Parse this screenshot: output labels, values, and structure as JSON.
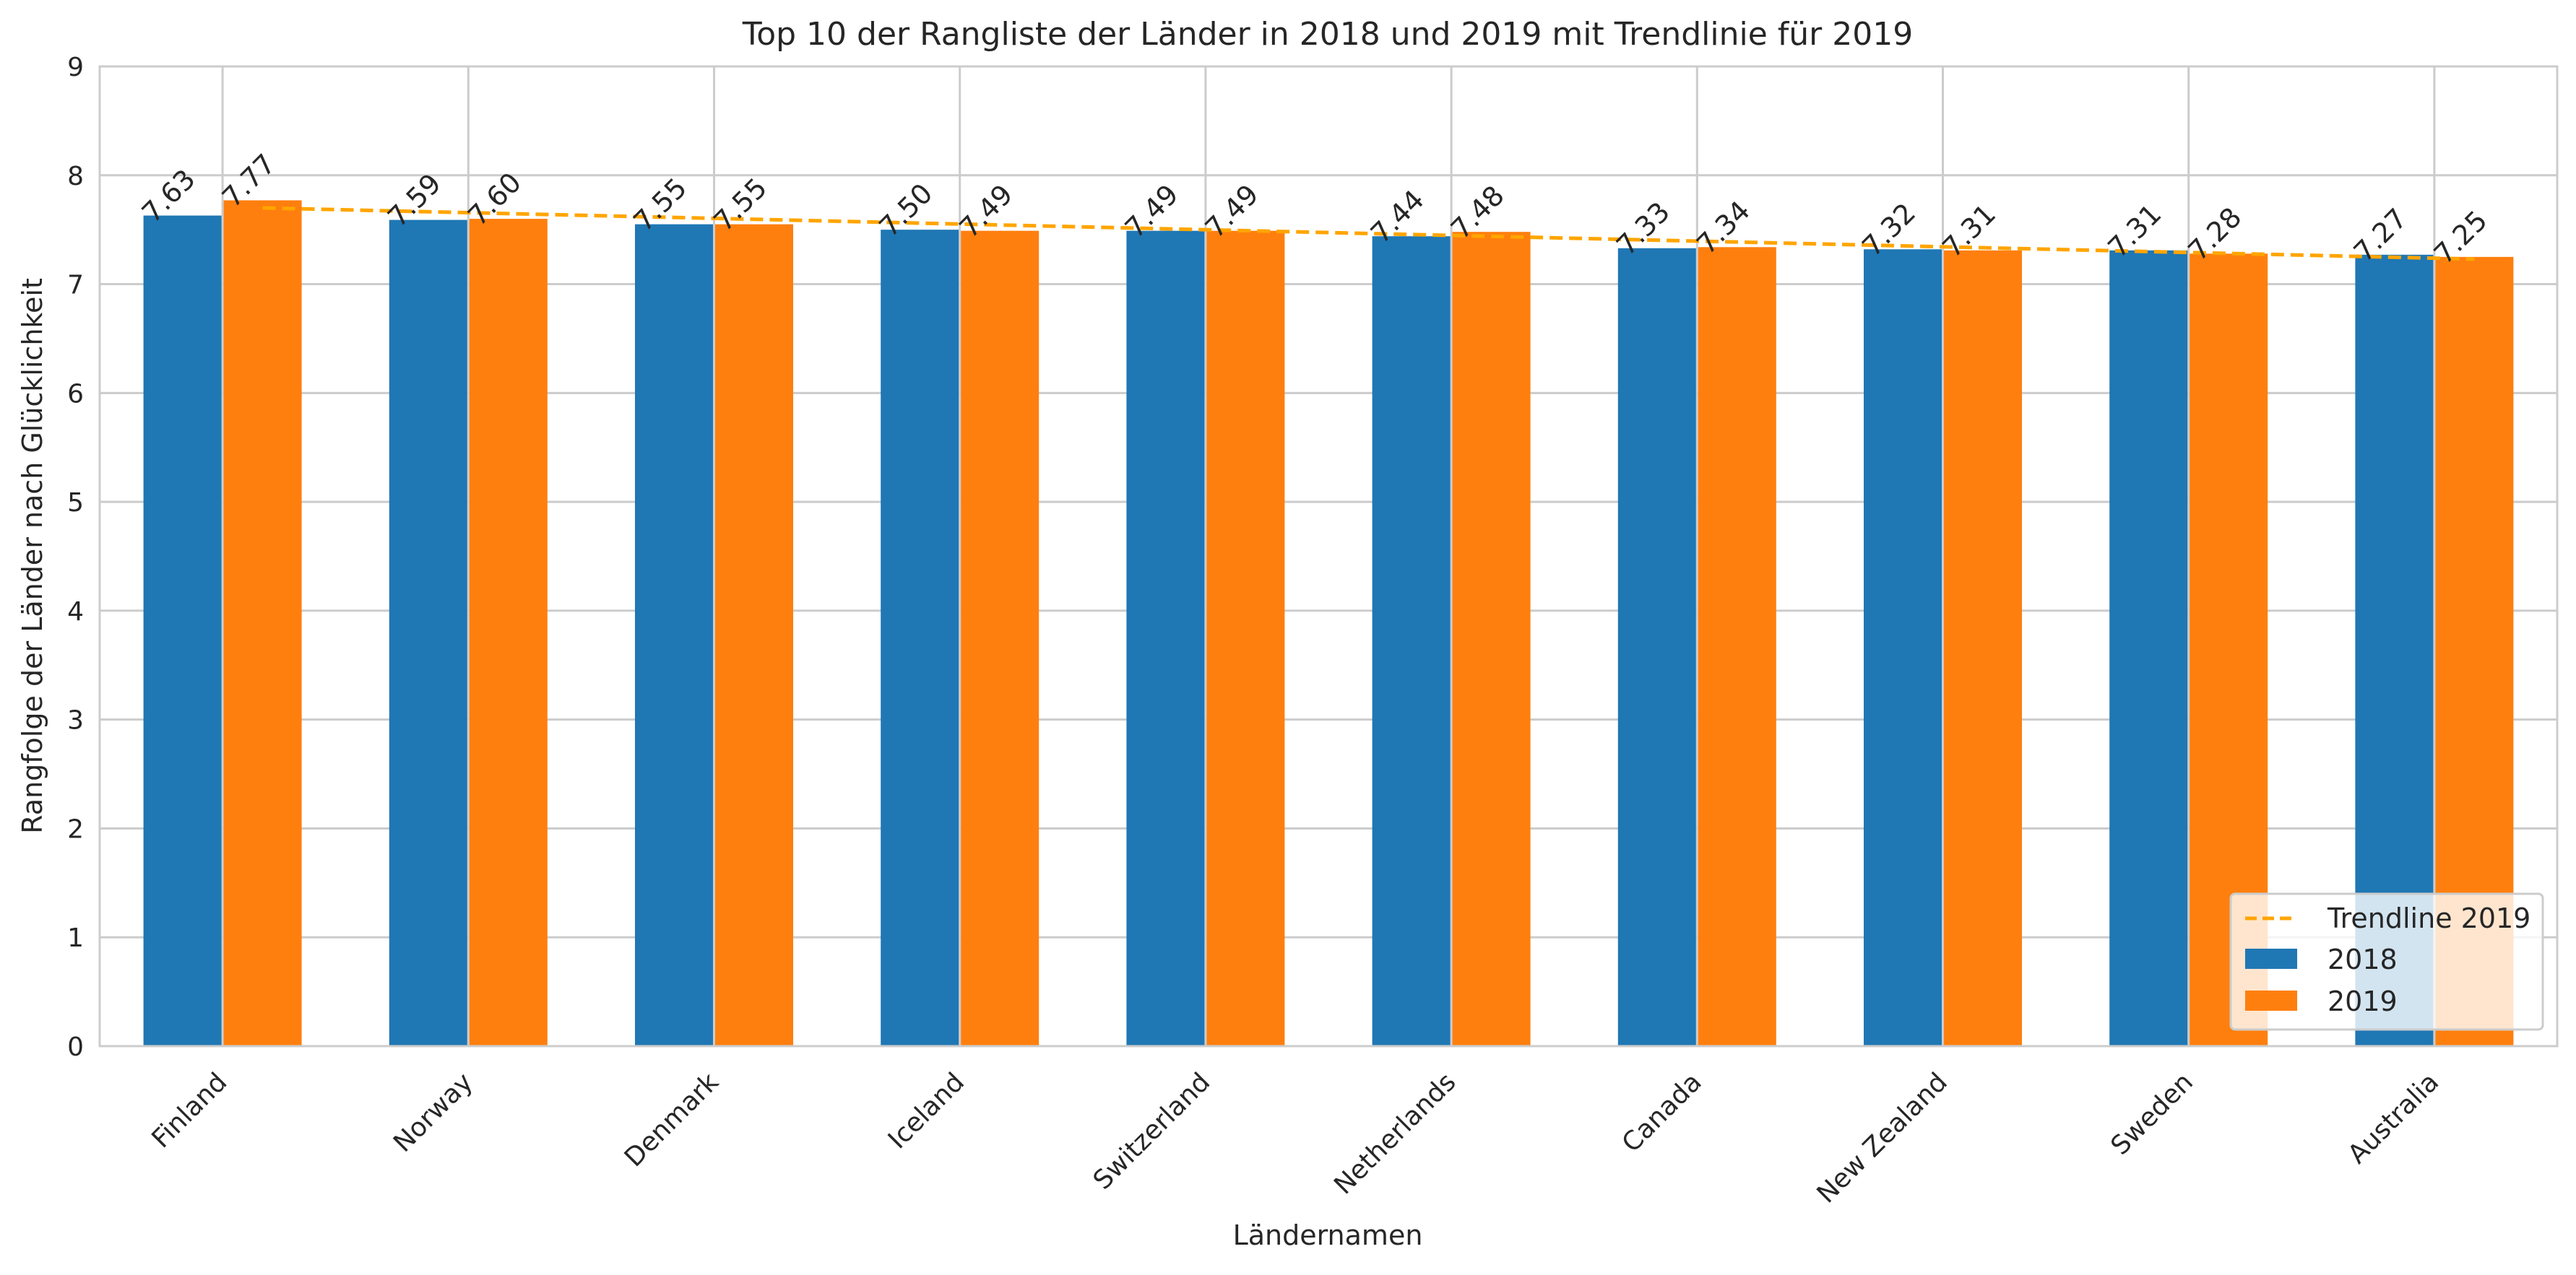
{
  "chart_data": {
    "type": "bar",
    "title": "Top 10 der Rangliste der Länder in 2018 und 2019 mit Trendlinie für 2019",
    "xlabel": "Ländernamen",
    "ylabel": "Rangfolge der Länder nach Glücklichkeit",
    "categories": [
      "Finland",
      "Norway",
      "Denmark",
      "Iceland",
      "Switzerland",
      "Netherlands",
      "Canada",
      "New Zealand",
      "Sweden",
      "Australia"
    ],
    "series": [
      {
        "name": "2018",
        "color": "#1f77b4",
        "values": [
          7.63,
          7.59,
          7.55,
          7.5,
          7.49,
          7.44,
          7.33,
          7.32,
          7.31,
          7.27
        ],
        "labels": [
          "7.63",
          "7.59",
          "7.55",
          "7.50",
          "7.49",
          "7.44",
          "7.33",
          "7.32",
          "7.31",
          "7.27"
        ]
      },
      {
        "name": "2019",
        "color": "#ff7f0e",
        "values": [
          7.77,
          7.6,
          7.55,
          7.49,
          7.49,
          7.48,
          7.34,
          7.31,
          7.28,
          7.25
        ],
        "labels": [
          "7.77",
          "7.60",
          "7.55",
          "7.49",
          "7.49",
          "7.48",
          "7.34",
          "7.31",
          "7.28",
          "7.25"
        ]
      }
    ],
    "trendline": {
      "name": "Trendline 2019",
      "color": "#ffa500",
      "style": "dashed",
      "start": 7.7,
      "end": 7.23
    },
    "ylim": [
      0,
      9
    ],
    "yticks": [
      "0",
      "1",
      "2",
      "3",
      "4",
      "5",
      "6",
      "7",
      "8",
      "9"
    ],
    "grid": true,
    "legend_position": "bottom-right"
  }
}
